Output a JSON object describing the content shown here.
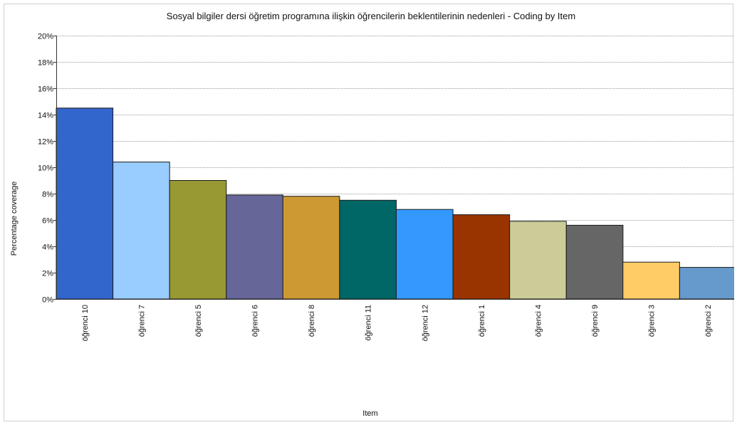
{
  "chart_data": {
    "type": "bar",
    "title": "Sosyal bilgiler dersi öğretim programına ilişkin öğrencilerin beklentilerinin nedenleri - Coding by Item",
    "xlabel": "Item",
    "ylabel": "Percentage coverage",
    "ylim": [
      0,
      20
    ],
    "y_tick_labels": [
      "0%",
      "2%",
      "4%",
      "6%",
      "8%",
      "10%",
      "12%",
      "14%",
      "16%",
      "18%",
      "20%"
    ],
    "grid": true,
    "categories": [
      "öğrenci 10",
      "öğrenci 7",
      "öğrenci 5",
      "öğrenci 6",
      "öğrenci 8",
      "öğrenci 11",
      "öğrenci 12",
      "öğrenci 1",
      "öğrenci 4",
      "öğrenci 9",
      "öğrenci 3",
      "öğrenci 2"
    ],
    "values": [
      14.5,
      10.4,
      9.0,
      7.9,
      7.8,
      7.5,
      6.8,
      6.4,
      5.9,
      5.6,
      2.8,
      2.4
    ],
    "colors": [
      "#3366cc",
      "#99ccff",
      "#999933",
      "#666699",
      "#cc9933",
      "#006666",
      "#3399ff",
      "#993300",
      "#cccc99",
      "#666666",
      "#ffcc66",
      "#6699cc"
    ]
  }
}
